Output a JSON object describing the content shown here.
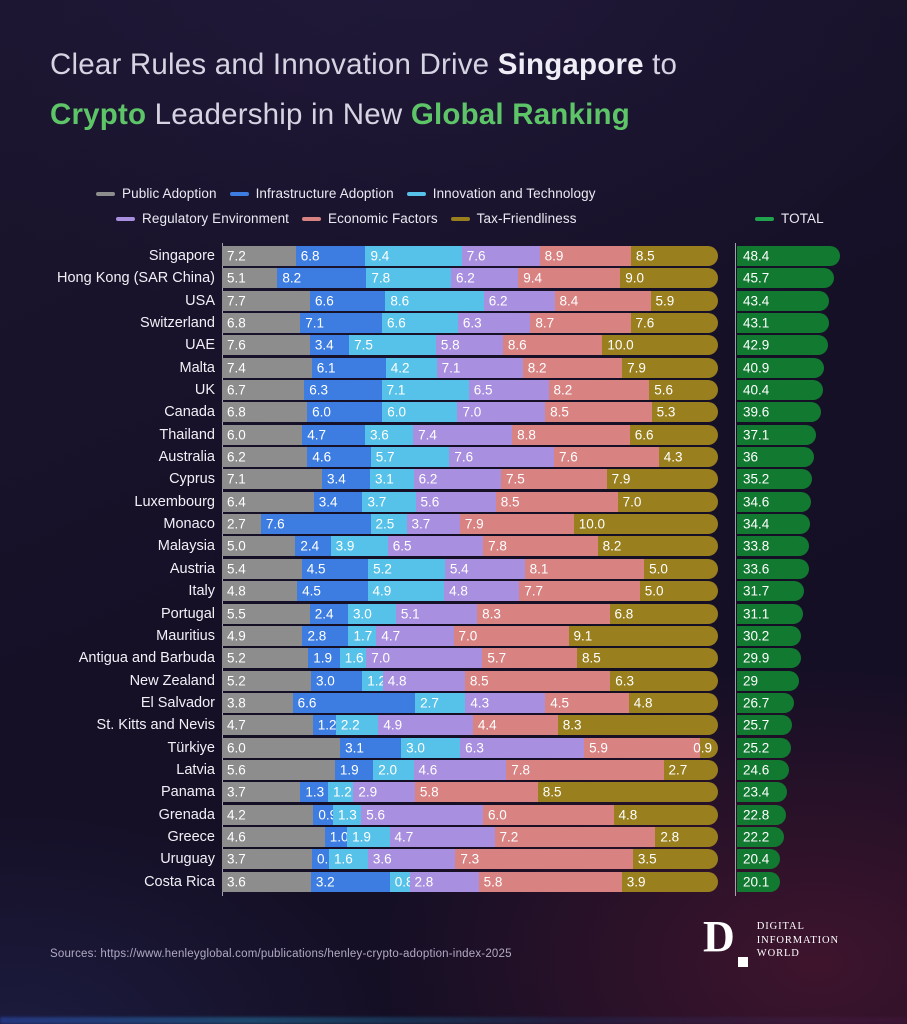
{
  "title": {
    "line1": [
      {
        "t": "Clear Rules and Innovation Drive ",
        "s": "n"
      },
      {
        "t": "Singapore",
        "s": "b"
      },
      {
        "t": " to",
        "s": "n"
      }
    ],
    "line2": [
      {
        "t": "Crypto",
        "s": "g"
      },
      {
        "t": " Leadership in New ",
        "s": "n"
      },
      {
        "t": "Global Ranking",
        "s": "g"
      }
    ]
  },
  "colors": {
    "title_green": "#5ec468",
    "series": [
      "#8d8d8d",
      "#3d7de2",
      "#57c2e9",
      "#a98fdf",
      "#d98282",
      "#9a7f1e"
    ],
    "total_bar": "#117a30",
    "total_legend": "#1fa34c"
  },
  "legend": {
    "row1": [
      "Public Adoption",
      "Infrastructure Adoption",
      "Innovation and Technology"
    ],
    "row2": [
      "Regulatory Environment",
      "Economic Factors",
      "Tax-Friendliness"
    ],
    "total_label": "TOTAL"
  },
  "chart_data": {
    "type": "bar",
    "orientation": "horizontal-stacked-normalized",
    "note": "Each row bar is 100%-width stacked; segment widths proportional to value/total. Green TOTAL bar length proportional to total (max 48.4).",
    "series_names": [
      "Public Adoption",
      "Infrastructure Adoption",
      "Innovation and Technology",
      "Regulatory Environment",
      "Economic Factors",
      "Tax-Friendliness"
    ],
    "max_total": 48.4,
    "rows": [
      {
        "country": "Singapore",
        "values": [
          7.2,
          6.8,
          9.4,
          7.6,
          8.9,
          8.5
        ],
        "total": 48.4,
        "total_label": "48.4"
      },
      {
        "country": "Hong Kong (SAR China)",
        "values": [
          5.1,
          8.2,
          7.8,
          6.2,
          9.4,
          9.0
        ],
        "total": 45.7,
        "total_label": "45.7"
      },
      {
        "country": "USA",
        "values": [
          7.7,
          6.6,
          8.6,
          6.2,
          8.4,
          5.9
        ],
        "total": 43.4,
        "total_label": "43.4"
      },
      {
        "country": "Switzerland",
        "values": [
          6.8,
          7.1,
          6.6,
          6.3,
          8.7,
          7.6
        ],
        "total": 43.1,
        "total_label": "43.1"
      },
      {
        "country": "UAE",
        "values": [
          7.6,
          3.4,
          7.5,
          5.8,
          8.6,
          10.0
        ],
        "total": 42.9,
        "total_label": "42.9"
      },
      {
        "country": "Malta",
        "values": [
          7.4,
          6.1,
          4.2,
          7.1,
          8.2,
          7.9
        ],
        "total": 40.9,
        "total_label": "40.9"
      },
      {
        "country": "UK",
        "values": [
          6.7,
          6.3,
          7.1,
          6.5,
          8.2,
          5.6
        ],
        "total": 40.4,
        "total_label": "40.4"
      },
      {
        "country": "Canada",
        "values": [
          6.8,
          6.0,
          6.0,
          7.0,
          8.5,
          5.3
        ],
        "total": 39.6,
        "total_label": "39.6"
      },
      {
        "country": "Thailand",
        "values": [
          6.0,
          4.7,
          3.6,
          7.4,
          8.8,
          6.6
        ],
        "total": 37.1,
        "total_label": "37.1"
      },
      {
        "country": "Australia",
        "values": [
          6.2,
          4.6,
          5.7,
          7.6,
          7.6,
          4.3
        ],
        "total": 36.0,
        "total_label": "36"
      },
      {
        "country": "Cyprus",
        "values": [
          7.1,
          3.4,
          3.1,
          6.2,
          7.5,
          7.9
        ],
        "total": 35.2,
        "total_label": "35.2"
      },
      {
        "country": "Luxembourg",
        "values": [
          6.4,
          3.4,
          3.7,
          5.6,
          8.5,
          7.0
        ],
        "total": 34.6,
        "total_label": "34.6"
      },
      {
        "country": "Monaco",
        "values": [
          2.7,
          7.6,
          2.5,
          3.7,
          7.9,
          10.0
        ],
        "total": 34.4,
        "total_label": "34.4"
      },
      {
        "country": "Malaysia",
        "values": [
          5.0,
          2.4,
          3.9,
          6.5,
          7.8,
          8.2
        ],
        "total": 33.8,
        "total_label": "33.8"
      },
      {
        "country": "Austria",
        "values": [
          5.4,
          4.5,
          5.2,
          5.4,
          8.1,
          5.0
        ],
        "total": 33.6,
        "total_label": "33.6"
      },
      {
        "country": "Italy",
        "values": [
          4.8,
          4.5,
          4.9,
          4.8,
          7.7,
          5.0
        ],
        "total": 31.7,
        "total_label": "31.7"
      },
      {
        "country": "Portugal",
        "values": [
          5.5,
          2.4,
          3.0,
          5.1,
          8.3,
          6.8
        ],
        "total": 31.1,
        "total_label": "31.1"
      },
      {
        "country": "Mauritius",
        "values": [
          4.9,
          2.8,
          1.7,
          4.7,
          7.0,
          9.1
        ],
        "total": 30.2,
        "total_label": "30.2"
      },
      {
        "country": "Antigua and Barbuda",
        "values": [
          5.2,
          1.9,
          1.6,
          7.0,
          5.7,
          8.5
        ],
        "total": 29.9,
        "total_label": "29.9"
      },
      {
        "country": "New Zealand",
        "values": [
          5.2,
          3.0,
          1.2,
          4.8,
          8.5,
          6.3
        ],
        "total": 29.0,
        "total_label": "29"
      },
      {
        "country": "El Salvador",
        "values": [
          3.8,
          6.6,
          2.7,
          4.3,
          4.5,
          4.8
        ],
        "total": 26.7,
        "total_label": "26.7"
      },
      {
        "country": "St. Kitts and Nevis",
        "values": [
          4.7,
          1.2,
          2.2,
          4.9,
          4.4,
          8.3
        ],
        "total": 25.7,
        "total_label": "25.7"
      },
      {
        "country": "Türkiye",
        "values": [
          6.0,
          3.1,
          3.0,
          6.3,
          5.9,
          0.9
        ],
        "total": 25.2,
        "total_label": "25.2"
      },
      {
        "country": "Latvia",
        "values": [
          5.6,
          1.9,
          2.0,
          4.6,
          7.8,
          2.7
        ],
        "total": 24.6,
        "total_label": "24.6"
      },
      {
        "country": "Panama",
        "values": [
          3.7,
          1.3,
          1.2,
          2.9,
          5.8,
          8.5
        ],
        "total": 23.4,
        "total_label": "23.4"
      },
      {
        "country": "Grenada",
        "values": [
          4.2,
          0.9,
          1.3,
          5.6,
          6.0,
          4.8
        ],
        "total": 22.8,
        "total_label": "22.8"
      },
      {
        "country": "Greece",
        "values": [
          4.6,
          1.0,
          1.9,
          4.7,
          7.2,
          2.8
        ],
        "total": 22.2,
        "total_label": "22.2"
      },
      {
        "country": "Uruguay",
        "values": [
          3.7,
          0.7,
          1.6,
          3.6,
          7.3,
          3.5
        ],
        "total": 20.4,
        "total_label": "20.4"
      },
      {
        "country": "Costa Rica",
        "values": [
          3.6,
          3.2,
          0.8,
          2.8,
          5.8,
          3.9
        ],
        "total": 20.1,
        "total_label": "20.1"
      }
    ]
  },
  "footer": {
    "source": "Sources: https://www.henleyglobal.com/publications/henley-crypto-adoption-index-2025",
    "logo": {
      "mark": "D",
      "lines": [
        "DIGITAL",
        "INFORMATION",
        "WORLD"
      ]
    }
  }
}
